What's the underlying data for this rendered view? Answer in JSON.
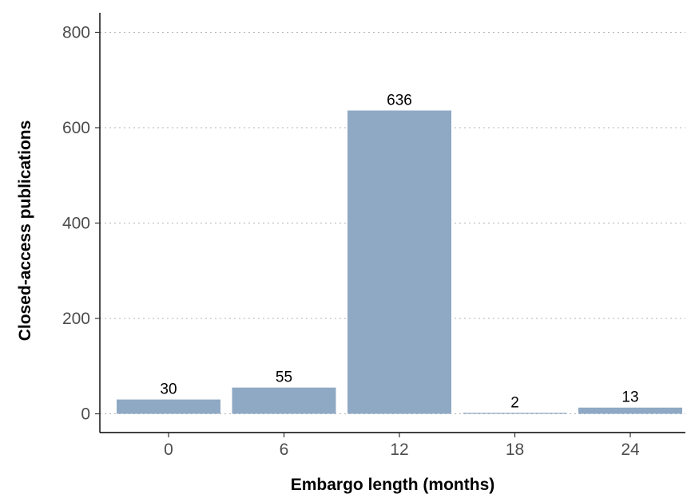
{
  "chart_data": {
    "type": "bar",
    "categories": [
      "0",
      "6",
      "12",
      "18",
      "24"
    ],
    "values": [
      30,
      55,
      636,
      2,
      13
    ],
    "xlabel": "Embargo length (months)",
    "ylabel": "Closed-access publications",
    "ylim": [
      0,
      800
    ],
    "yticks": [
      0,
      200,
      400,
      600,
      800
    ],
    "grid": "horizontal dotted",
    "legend": "none",
    "bar_color": "#8fa9c4"
  }
}
